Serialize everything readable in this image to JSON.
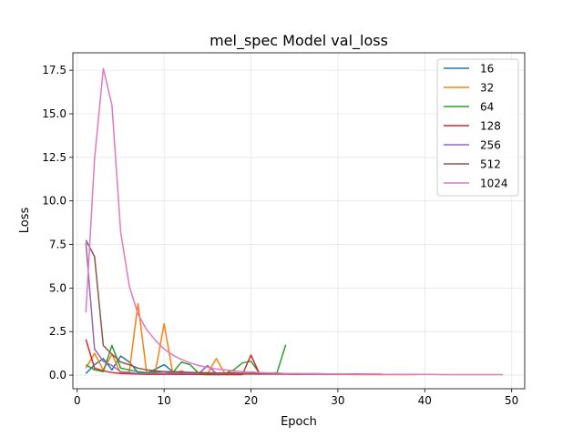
{
  "chart_data": {
    "type": "line",
    "title": "mel_spec Model val_loss",
    "xlabel": "Epoch",
    "ylabel": "Loss",
    "xlim": [
      -0.5,
      51.5
    ],
    "ylim": [
      -0.78,
      18.5
    ],
    "xticks": [
      0,
      10,
      20,
      30,
      40,
      50
    ],
    "xtick_labels": [
      "0",
      "10",
      "20",
      "30",
      "40",
      "50"
    ],
    "yticks": [
      0.0,
      2.5,
      5.0,
      7.5,
      10.0,
      12.5,
      15.0,
      17.5
    ],
    "ytick_labels": [
      "0.0",
      "2.5",
      "5.0",
      "7.5",
      "10.0",
      "12.5",
      "15.0",
      "17.5"
    ],
    "grid": true,
    "legend_position": "top-right",
    "series": [
      {
        "name": "16",
        "color": "#1f77b4",
        "x": [
          1,
          2,
          3,
          4,
          5,
          6,
          7,
          8,
          9,
          10,
          11,
          12,
          13,
          14,
          15,
          16,
          17,
          18,
          19,
          20,
          21
        ],
        "y": [
          0.1,
          0.6,
          0.95,
          0.3,
          1.1,
          0.75,
          0.15,
          0.1,
          0.35,
          0.6,
          0.2,
          0.15,
          0.1,
          0.08,
          0.55,
          0.1,
          0.05,
          0.1,
          0.05,
          0.08,
          0.05
        ]
      },
      {
        "name": "32",
        "color": "#ff7f0e",
        "x": [
          1,
          2,
          3,
          4,
          5,
          6,
          7,
          8,
          9,
          10,
          11,
          12,
          13,
          14,
          15,
          16,
          17,
          18,
          19,
          20,
          21,
          22,
          23,
          24,
          25,
          26,
          27,
          28,
          29,
          30,
          31,
          32,
          33,
          34,
          35,
          36,
          37,
          38,
          39
        ],
        "y": [
          0.4,
          1.25,
          0.3,
          1.2,
          0.1,
          0.2,
          4.1,
          0.1,
          0.2,
          2.95,
          0.1,
          0.25,
          0.05,
          0.1,
          0.1,
          0.95,
          0.1,
          0.05,
          0.05,
          0.05,
          0.05,
          0.05,
          0.05,
          0.05,
          0.05,
          0.04,
          0.04,
          0.04,
          0.04,
          0.04,
          0.04,
          0.03,
          0.03,
          0.03,
          0.03,
          0.03,
          0.03,
          0.03,
          0.03
        ]
      },
      {
        "name": "64",
        "color": "#2ca02c",
        "x": [
          1,
          2,
          3,
          4,
          5,
          6,
          7,
          8,
          9,
          10,
          11,
          12,
          13,
          14,
          15,
          16,
          17,
          18,
          19,
          20,
          21,
          22,
          23,
          24
        ],
        "y": [
          0.6,
          0.3,
          0.2,
          1.7,
          0.4,
          0.3,
          0.2,
          0.15,
          0.2,
          0.2,
          0.15,
          0.75,
          0.6,
          0.1,
          0.1,
          0.1,
          0.1,
          0.3,
          0.7,
          0.8,
          0.1,
          0.1,
          0.15,
          1.75
        ]
      },
      {
        "name": "128",
        "color": "#d62728",
        "x": [
          1,
          2,
          3,
          4,
          5,
          6,
          7,
          8,
          9,
          10,
          11,
          12,
          13,
          14,
          15,
          16,
          17,
          18,
          19,
          20,
          21
        ],
        "y": [
          2.05,
          0.4,
          0.25,
          0.15,
          0.1,
          0.08,
          0.06,
          0.05,
          0.05,
          0.05,
          0.05,
          0.04,
          0.04,
          0.04,
          0.03,
          0.03,
          0.03,
          0.03,
          0.03,
          1.15,
          0.05
        ]
      },
      {
        "name": "256",
        "color": "#9467bd",
        "x": [
          1,
          2,
          3,
          4,
          5,
          6,
          7,
          8,
          9,
          10,
          11,
          12,
          13,
          14,
          15,
          16,
          17,
          18,
          19,
          20,
          21,
          22,
          23,
          24,
          25,
          26,
          27,
          28,
          29,
          30
        ],
        "y": [
          7.6,
          1.5,
          0.8,
          0.55,
          0.2,
          0.15,
          0.1,
          0.1,
          0.12,
          0.1,
          0.12,
          0.1,
          0.08,
          0.1,
          0.55,
          0.1,
          0.08,
          0.15,
          0.08,
          0.07,
          0.07,
          0.06,
          0.06,
          0.06,
          0.05,
          0.05,
          0.05,
          0.05,
          0.05,
          0.05
        ]
      },
      {
        "name": "512",
        "color": "#8c564b",
        "x": [
          1,
          2,
          3,
          4,
          5,
          6,
          7,
          8,
          9,
          10,
          11,
          12,
          13,
          14,
          15,
          16,
          17,
          18,
          19,
          20,
          21,
          22,
          23,
          24,
          25,
          26,
          27,
          28,
          29,
          30,
          31,
          32,
          33,
          34,
          35
        ],
        "y": [
          7.75,
          6.8,
          1.7,
          1.2,
          0.75,
          0.6,
          0.4,
          0.3,
          0.25,
          0.2,
          0.2,
          0.18,
          0.16,
          0.15,
          0.14,
          0.13,
          0.12,
          0.12,
          0.11,
          0.1,
          0.1,
          0.1,
          0.09,
          0.09,
          0.08,
          0.08,
          0.08,
          0.08,
          0.07,
          0.07,
          0.07,
          0.07,
          0.06,
          0.06,
          0.06
        ]
      },
      {
        "name": "1024",
        "color": "#e377c2",
        "x": [
          1,
          2,
          3,
          4,
          5,
          6,
          7,
          8,
          9,
          10,
          11,
          12,
          13,
          14,
          15,
          16,
          17,
          18,
          19,
          20,
          21,
          22,
          23,
          24,
          25,
          26,
          27,
          28,
          29,
          30,
          31,
          32,
          33,
          34,
          35,
          36,
          37,
          38,
          39,
          40,
          41,
          42,
          43,
          44,
          45,
          46,
          47,
          48,
          49
        ],
        "y": [
          3.6,
          12.4,
          17.6,
          15.5,
          8.2,
          5.1,
          3.5,
          2.6,
          2.0,
          1.5,
          1.15,
          0.9,
          0.7,
          0.55,
          0.45,
          0.35,
          0.3,
          0.25,
          0.2,
          0.18,
          0.15,
          0.13,
          0.12,
          0.1,
          0.09,
          0.08,
          0.08,
          0.07,
          0.07,
          0.06,
          0.06,
          0.05,
          0.05,
          0.05,
          0.05,
          0.04,
          0.04,
          0.04,
          0.04,
          0.04,
          0.04,
          0.03,
          0.03,
          0.03,
          0.03,
          0.03,
          0.03,
          0.03,
          0.03
        ]
      }
    ]
  }
}
